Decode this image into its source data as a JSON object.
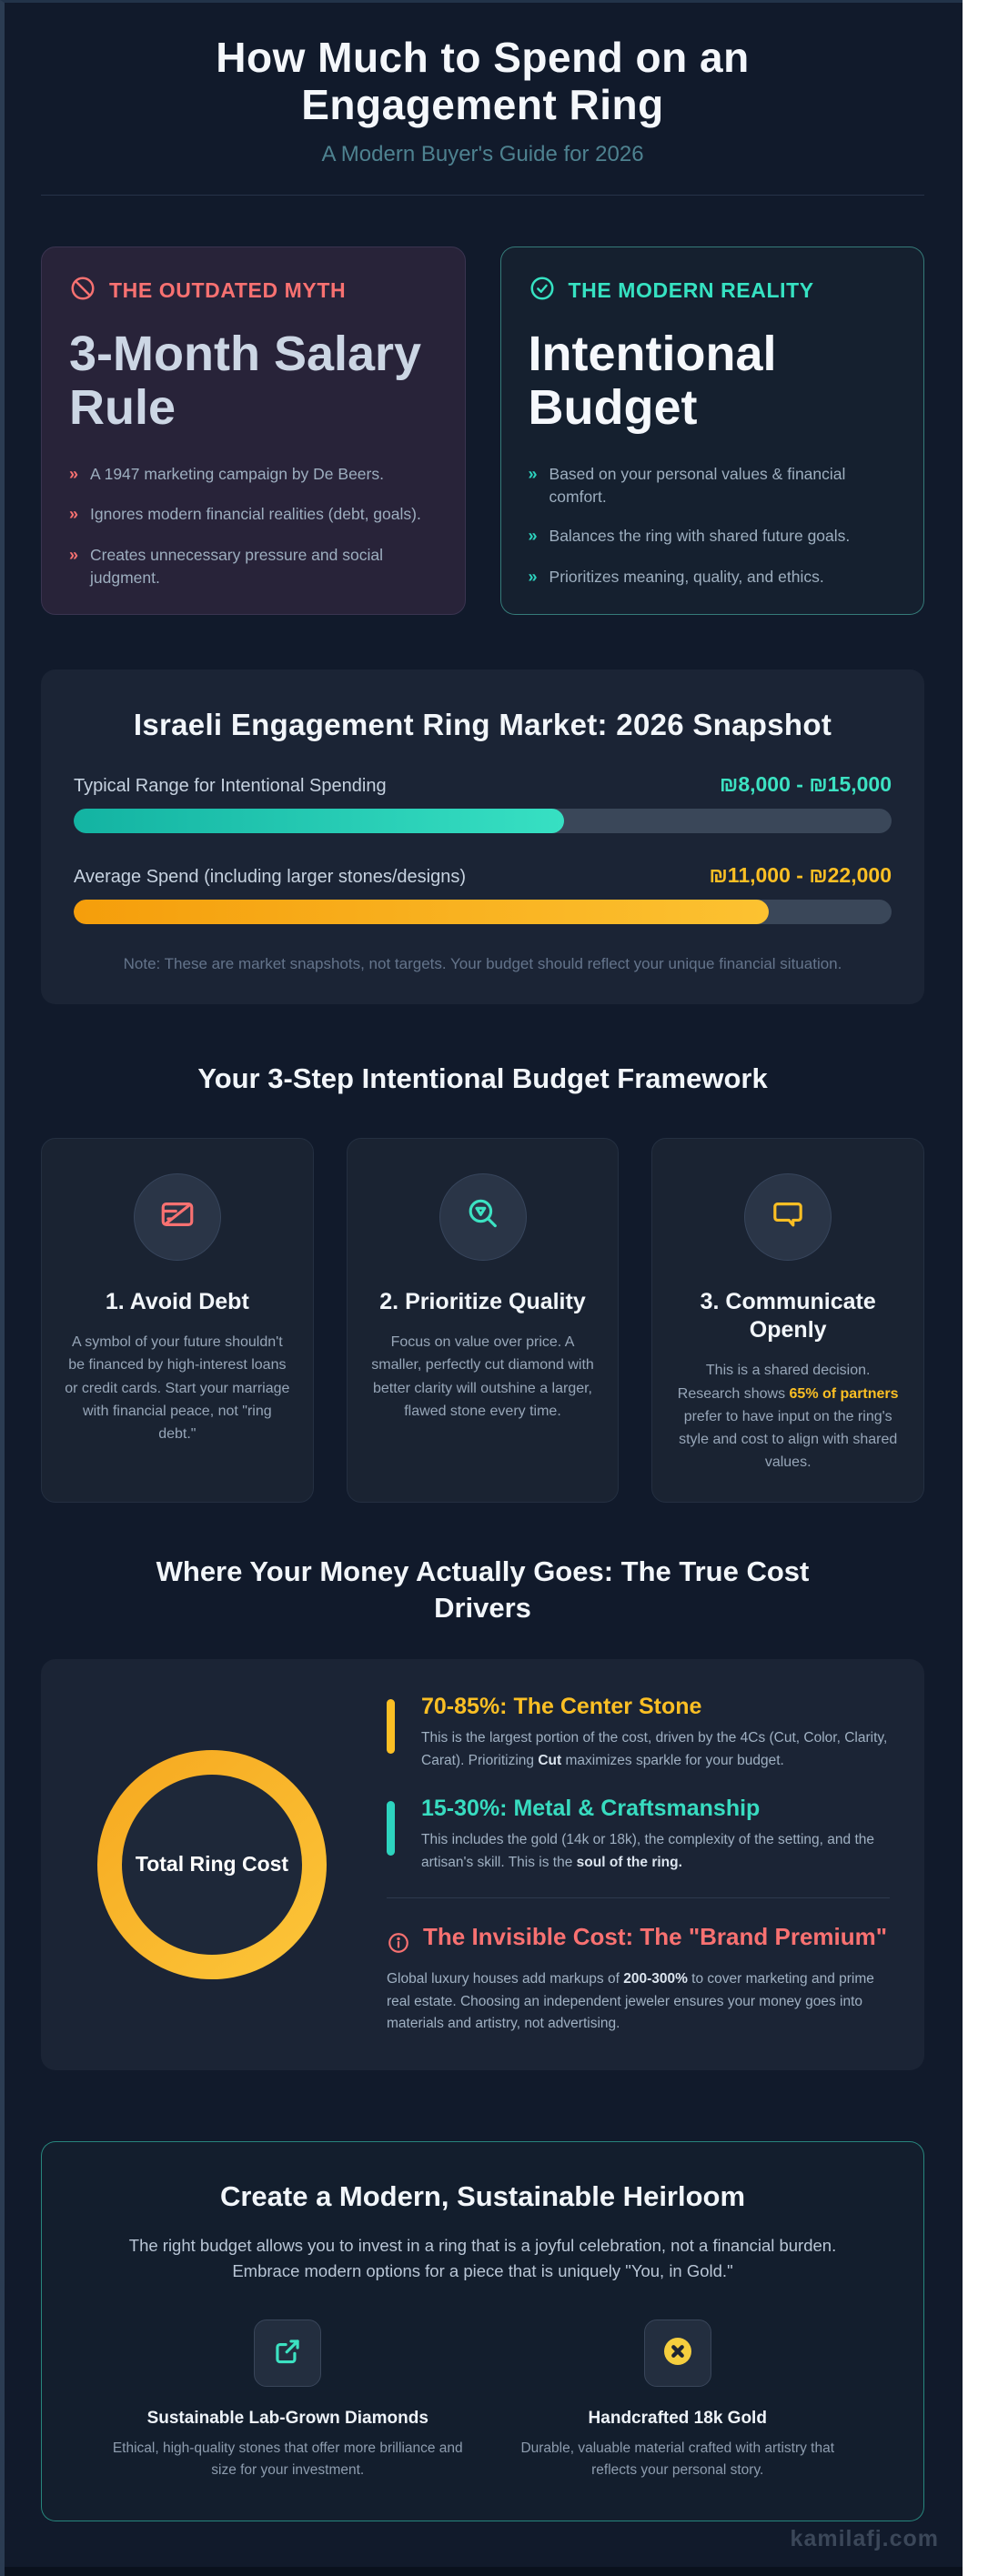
{
  "header": {
    "title_line1": "How Much to Spend on an",
    "title_line2": "Engagement Ring",
    "subtitle": "A Modern Buyer's Guide for 2026"
  },
  "myth": {
    "label": "THE OUTDATED MYTH",
    "title": "3-Month Salary Rule",
    "marker": "»",
    "bullets": [
      "A 1947 marketing campaign by De Beers.",
      "Ignores modern financial realities (debt, goals).",
      "Creates unnecessary pressure and social judgment."
    ]
  },
  "reality": {
    "label": "THE MODERN REALITY",
    "title": "Intentional Budget",
    "marker": "»",
    "bullets": [
      "Based on your personal values & financial comfort.",
      "Balances the ring with shared future goals.",
      "Prioritizes meaning, quality, and ethics."
    ]
  },
  "snapshot": {
    "title": "Israeli Engagement Ring Market: 2026 Snapshot",
    "bars": [
      {
        "label": "Typical Range for Intentional Spending",
        "value": "₪8,000 - ₪15,000",
        "fill_percent": 60
      },
      {
        "label": "Average Spend (including larger stones/designs)",
        "value": "₪11,000 - ₪22,000",
        "fill_percent": 85
      }
    ],
    "note": "Note: These are market snapshots, not targets. Your budget should reflect your unique financial situation."
  },
  "framework": {
    "heading": "Your 3-Step Intentional Budget Framework",
    "steps": [
      {
        "title": "1. Avoid Debt",
        "body": "A symbol of your future shouldn't be financed by high-interest loans or credit cards. Start your marriage with financial peace, not \"ring debt.\""
      },
      {
        "title": "2. Prioritize Quality",
        "body": "Focus on value over price. A smaller, perfectly cut diamond with better clarity will outshine a larger, flawed stone every time."
      },
      {
        "title": "3. Communicate Openly",
        "body_pre": "This is a shared decision. Research shows ",
        "body_highlight": "65% of partners",
        "body_post": " prefer to have input on the ring's style and cost to align with shared values."
      }
    ]
  },
  "cost": {
    "heading": "Where Your Money Actually Goes: The True Cost Drivers",
    "donut_label": "Total Ring Cost",
    "items": [
      {
        "title": "70-85%: The Center Stone",
        "body_pre": "This is the largest portion of the cost, driven by the 4Cs (Cut, Color, Clarity, Carat). Prioritizing ",
        "body_bold": "Cut",
        "body_post": " maximizes sparkle for your budget."
      },
      {
        "title": "15-30%: Metal & Craftsmanship",
        "body_pre": "This includes the gold (14k or 18k), the complexity of the setting, and the artisan's skill. This is the ",
        "body_bold": "soul of the ring.",
        "body_post": ""
      },
      {
        "title": "The Invisible Cost: The \"Brand Premium\"",
        "body_pre": "Global luxury houses add markups of ",
        "body_bold": "200-300%",
        "body_post": " to cover marketing and prime real estate. Choosing an independent jeweler ensures your money goes into materials and artistry, not advertising."
      }
    ]
  },
  "heirloom": {
    "heading": "Create a Modern, Sustainable Heirloom",
    "paragraph": "The right budget allows you to invest in a ring that is a joyful celebration, not a financial burden. Embrace modern options for a piece that is uniquely \"You, in Gold.\"",
    "features": [
      {
        "title": "Sustainable Lab-Grown Diamonds",
        "body": "Ethical, high-quality stones that offer more brilliance and size for your investment."
      },
      {
        "title": "Handcrafted 18k Gold",
        "body": "Durable, valuable material crafted with artistry that reflects your personal story."
      }
    ]
  },
  "watermark": "kamilafj.com",
  "colors": {
    "page_bg": "#111a2b",
    "panel_bg": "#1b2435",
    "salmon": "#f87171",
    "teal": "#2dd4bf",
    "amber": "#fbbf24",
    "body_text": "#97a6b8",
    "heading_text": "#f2f6fa"
  },
  "chart_data": [
    {
      "type": "bar",
      "orientation": "horizontal",
      "title": "Israeli Engagement Ring Market: 2026 Snapshot",
      "categories": [
        "Typical Range for Intentional Spending",
        "Average Spend (including larger stones/designs)"
      ],
      "value_labels": [
        "₪8,000 - ₪15,000",
        "₪11,000 - ₪22,000"
      ],
      "ranges_nis": [
        [
          8000,
          15000
        ],
        [
          11000,
          22000
        ]
      ],
      "bar_fill_percent": [
        60,
        85
      ],
      "colors": [
        "#2dd4bf",
        "#fbbf24"
      ],
      "note": "Note: These are market snapshots, not targets. Your budget should reflect your unique financial situation."
    },
    {
      "type": "pie",
      "variant": "donut",
      "center_label": "Total Ring Cost",
      "ring_color": "#fbbf24",
      "segments": [
        {
          "label": "The Center Stone",
          "share": "70-85%"
        },
        {
          "label": "Metal & Craftsmanship",
          "share": "15-30%"
        },
        {
          "label": "Brand Premium (invisible markup)",
          "share": "200-300% markup"
        }
      ]
    }
  ]
}
